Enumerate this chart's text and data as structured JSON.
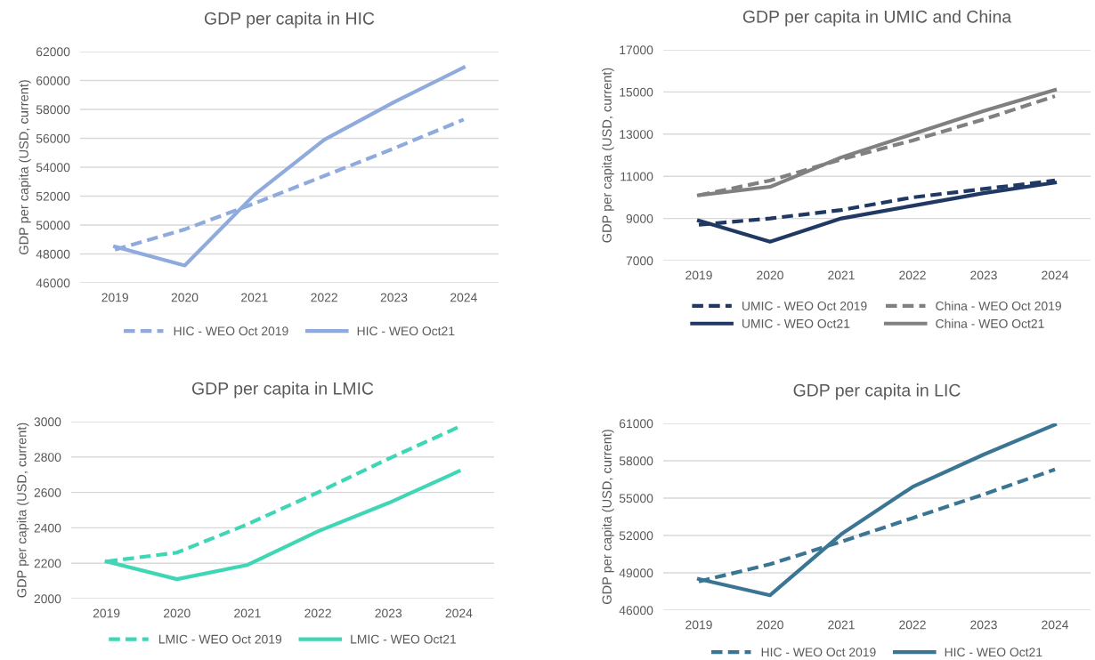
{
  "chart_data": [
    {
      "type": "line",
      "title": "GDP per capita in HIC",
      "ylabel": "GDP per capita (USD, current)",
      "categories": [
        "2019",
        "2020",
        "2021",
        "2022",
        "2023",
        "2024"
      ],
      "ylim": [
        46000,
        62000
      ],
      "yticks": [
        46000,
        48000,
        50000,
        52000,
        54000,
        56000,
        58000,
        60000,
        62000
      ],
      "grid": "y",
      "legend": "bottom",
      "series": [
        {
          "name": "HIC - WEO Oct 2019",
          "color": "#8faadc",
          "line_style": "dashed",
          "values": [
            48300,
            49700,
            51500,
            53400,
            55300,
            57300
          ]
        },
        {
          "name": "HIC - WEO Oct21",
          "color": "#8faadc",
          "line_style": "solid",
          "values": [
            48500,
            47200,
            52100,
            55900,
            58500,
            60900
          ]
        }
      ]
    },
    {
      "type": "line",
      "title": "GDP per capita in UMIC and China",
      "ylabel": "GDP per capita (USD, current)",
      "categories": [
        "2019",
        "2020",
        "2021",
        "2022",
        "2023",
        "2024"
      ],
      "ylim": [
        7000,
        17000
      ],
      "yticks": [
        7000,
        9000,
        11000,
        13000,
        15000,
        17000
      ],
      "grid": "y",
      "legend": "bottom",
      "series": [
        {
          "name": "UMIC - WEO Oct 2019",
          "color": "#203864",
          "line_style": "dashed",
          "values": [
            8700,
            9000,
            9400,
            10000,
            10400,
            10800
          ]
        },
        {
          "name": "UMIC - WEO Oct21",
          "color": "#203864",
          "line_style": "solid",
          "values": [
            8900,
            7900,
            9000,
            9600,
            10200,
            10700
          ]
        },
        {
          "name": "China - WEO Oct 2019",
          "color": "#808080",
          "line_style": "dashed",
          "values": [
            10100,
            10800,
            11800,
            12700,
            13700,
            14800
          ]
        },
        {
          "name": "China - WEO Oct21",
          "color": "#808080",
          "line_style": "solid",
          "values": [
            10100,
            10500,
            11900,
            13000,
            14100,
            15100
          ]
        }
      ]
    },
    {
      "type": "line",
      "title": "GDP per capita in LMIC",
      "ylabel": "GDP per capita (USD, current)",
      "categories": [
        "2019",
        "2020",
        "2021",
        "2022",
        "2023",
        "2024"
      ],
      "ylim": [
        2000,
        3000
      ],
      "yticks": [
        2000,
        2200,
        2400,
        2600,
        2800,
        3000
      ],
      "grid": "y",
      "legend": "bottom",
      "series": [
        {
          "name": "LMIC - WEO Oct 2019",
          "color": "#3fd6b5",
          "line_style": "dashed",
          "values": [
            2210,
            2260,
            2420,
            2600,
            2790,
            2970
          ]
        },
        {
          "name": "LMIC - WEO Oct21",
          "color": "#3fd6b5",
          "line_style": "solid",
          "values": [
            2210,
            2110,
            2190,
            2380,
            2540,
            2720
          ]
        }
      ]
    },
    {
      "type": "line",
      "title": "GDP per capita in LIC",
      "ylabel": "GDP per capita (USD, current)",
      "categories": [
        "2019",
        "2020",
        "2021",
        "2022",
        "2023",
        "2024"
      ],
      "ylim": [
        46000,
        61000
      ],
      "yticks": [
        46000,
        49000,
        52000,
        55000,
        58000,
        61000
      ],
      "grid": "y",
      "legend": "bottom",
      "series": [
        {
          "name": "HIC - WEO Oct 2019",
          "color": "#3a7694",
          "line_style": "dashed",
          "values": [
            48300,
            49700,
            51500,
            53400,
            55300,
            57300
          ]
        },
        {
          "name": "HIC - WEO Oct21",
          "color": "#3a7694",
          "line_style": "solid",
          "values": [
            48500,
            47200,
            52100,
            55900,
            58500,
            60900
          ]
        }
      ]
    }
  ]
}
